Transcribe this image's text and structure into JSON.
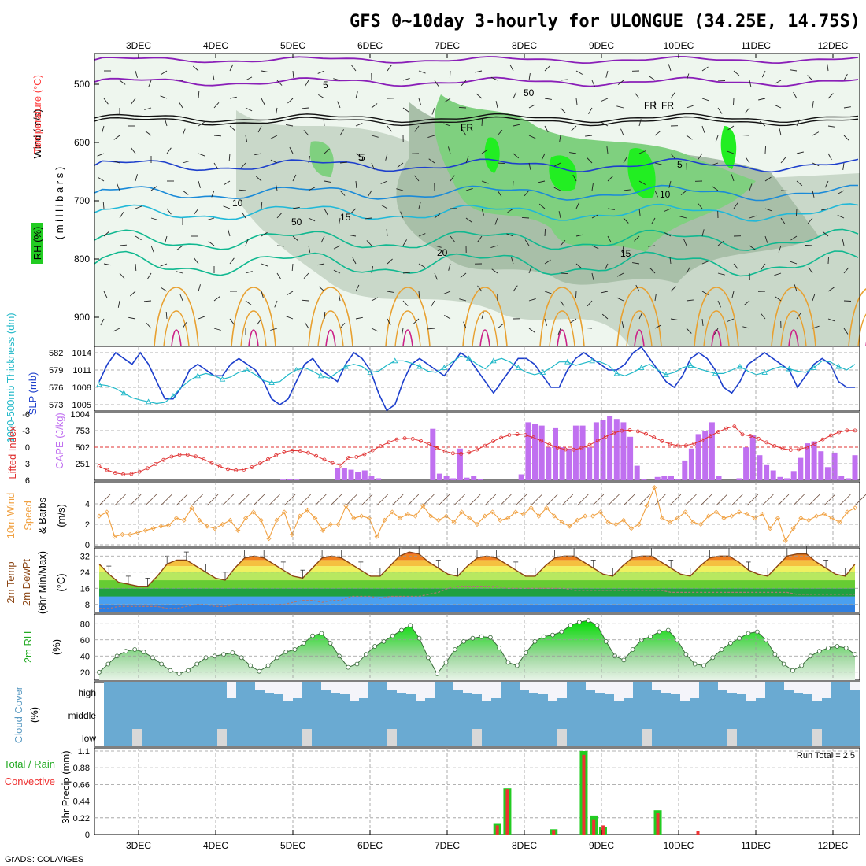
{
  "title": "GFS 0~10day 3-hourly for ULONGUE (34.25E, 14.75S)",
  "footer": "GrADS: COLA/IGES",
  "days": [
    "3DEC",
    "4DEC",
    "5DEC",
    "6DEC",
    "7DEC",
    "8DEC",
    "9DEC",
    "10DEC",
    "11DEC",
    "12DEC"
  ],
  "colors": {
    "slp": "#1d3fcc",
    "thickness": "#20b8c8",
    "lifted": "#e03030",
    "cape": "#c070f0",
    "wind10": "#f0a040",
    "rh_green": "#22cc22",
    "cloud": "#6aaad2",
    "precip_total": "#22cc22",
    "precip_conv": "#ee3333",
    "temp_line": "#8b4513",
    "dew_line": "#aa7777"
  },
  "upper_panel": {
    "ylabel_wind": "Wind (m/s)",
    "ylabel_temp": "Temperature (°C)",
    "ylabel_rh": "RH (%)",
    "ylabel_mb": "( m i l l i b a r s )",
    "ticks": [
      "500",
      "600",
      "700",
      "800",
      "900"
    ],
    "labels": [
      "5",
      "50",
      "FR",
      "FR",
      "FR",
      "5",
      "5",
      "5",
      "10",
      "10",
      "15",
      "15",
      "20",
      "50"
    ]
  },
  "slp_panel": {
    "ylabel_left": "1000-500mb Thickness (dm)",
    "ylabel_right": "SLP (mb)",
    "left_ticks": [
      "582",
      "579",
      "576",
      "573"
    ],
    "right_ticks": [
      "1014",
      "1011",
      "1008",
      "1005"
    ]
  },
  "cape_panel": {
    "ylabel_left": "Lifted Index",
    "ylabel_right": "CAPE (J/kg)",
    "left_ticks": [
      "-6",
      "-3",
      "0",
      "3",
      "6"
    ],
    "right_ticks": [
      "1004",
      "753",
      "502",
      "251"
    ]
  },
  "wind_panel": {
    "ylabel_a": "10m Wind",
    "ylabel_b": "Speed",
    "ylabel_c": "& Barbs",
    "unit": "(m/s)",
    "ticks": [
      "4",
      "2",
      "0"
    ]
  },
  "temp_panel": {
    "ylabel_a": "2m Temp",
    "ylabel_b": "2m DewPt",
    "ylabel_c": "(6hr Min/Max)",
    "unit": "(°C)",
    "ticks": [
      "32",
      "24",
      "16",
      "8"
    ]
  },
  "rh_panel": {
    "ylabel": "2m RH",
    "unit": "(%)",
    "ticks": [
      "80",
      "60",
      "40",
      "20"
    ]
  },
  "cloud_panel": {
    "ylabel": "Cloud Cover",
    "unit": "(%)",
    "levels": [
      "high",
      "middle",
      "low"
    ]
  },
  "precip_panel": {
    "ylabel_a": "3hr Precip (mm)",
    "ylabel_b": "Total / Rain",
    "ylabel_c": "Convective",
    "ticks": [
      "1.1",
      "0.88",
      "0.66",
      "0.44",
      "0.22",
      "0"
    ],
    "run_total": "Run Total = 2.5"
  },
  "chart_data": [
    {
      "type": "line",
      "title": "SLP (mb) / 1000-500mb Thickness (dm)",
      "x_unit": "3-hourly steps from 2 DEC 12Z",
      "series": [
        {
          "name": "SLP (mb)",
          "values": [
            1009,
            1012,
            1014,
            1013,
            1012,
            1014,
            1012,
            1009,
            1006,
            1006,
            1008,
            1011,
            1012,
            1011,
            1010,
            1010,
            1012,
            1013,
            1012,
            1011,
            1009,
            1006,
            1005,
            1006,
            1009,
            1012,
            1013,
            1011,
            1010,
            1009,
            1012,
            1014,
            1013,
            1011,
            1007,
            1004,
            1005,
            1009,
            1012,
            1013,
            1012,
            1011,
            1010,
            1012,
            1014,
            1013,
            1011,
            1009,
            1007,
            1009,
            1011,
            1013,
            1013,
            1012,
            1010,
            1008,
            1008,
            1011,
            1013,
            1014,
            1013,
            1012,
            1011,
            1011,
            1012,
            1014,
            1015,
            1013,
            1011,
            1009,
            1008,
            1010,
            1013,
            1014,
            1013,
            1011,
            1008,
            1007,
            1009,
            1012,
            1013,
            1014,
            1013,
            1012,
            1011,
            1008,
            1010,
            1012,
            1013,
            1012,
            1009,
            1008,
            1008
          ]
        },
        {
          "name": "Thickness (dm)",
          "values": [
            576.5,
            576.3,
            575.8,
            575.0,
            574.2,
            573.8,
            573.5,
            573.2,
            573.4,
            574.5,
            576.0,
            577.2,
            578.0,
            578.4,
            578.0,
            577.4,
            577.8,
            578.6,
            579.0,
            578.2,
            577.2,
            576.8,
            577.0,
            578.2,
            579.0,
            579.4,
            578.8,
            578.0,
            577.6,
            578.6,
            579.6,
            580.0,
            579.6,
            578.6,
            578.8,
            579.8,
            580.6,
            580.6,
            580.2,
            579.6,
            578.8,
            578.6,
            579.4,
            580.4,
            581.4,
            581.0,
            580.0,
            579.2,
            580.6,
            581.0,
            580.4,
            579.4,
            578.6,
            578.2,
            578.6,
            579.4,
            580.4,
            580.4,
            579.8,
            580.2,
            580.6,
            580.4,
            579.8,
            578.4,
            578.0,
            578.6,
            579.4,
            580.0,
            579.0,
            578.2,
            578.6,
            579.4,
            579.8,
            579.2,
            578.8,
            578.4,
            578.4,
            579.0,
            579.6,
            578.8,
            578.2,
            578.6,
            579.2,
            579.6,
            579.2,
            578.8,
            578.6,
            579.4,
            580.6,
            580.4,
            579.6,
            579.0,
            580.0
          ]
        }
      ]
    },
    {
      "type": "bar",
      "title": "CAPE (J/kg) with Lifted Index line",
      "cape_values": [
        0,
        0,
        0,
        0,
        0,
        0,
        0,
        0,
        0,
        0,
        0,
        0,
        0,
        0,
        0,
        0,
        0,
        0,
        0,
        0,
        0,
        0,
        0,
        0,
        0,
        0,
        0,
        10,
        20,
        10,
        0,
        0,
        0,
        0,
        0,
        180,
        180,
        160,
        120,
        150,
        70,
        30,
        0,
        0,
        0,
        0,
        0,
        0,
        0,
        780,
        100,
        60,
        30,
        480,
        40,
        60,
        20,
        0,
        0,
        0,
        0,
        0,
        90,
        880,
        860,
        830,
        500,
        790,
        500,
        480,
        830,
        830,
        500,
        880,
        920,
        980,
        930,
        880,
        660,
        220,
        20,
        0,
        50,
        60,
        60,
        20,
        300,
        480,
        700,
        750,
        880,
        60,
        0,
        0,
        30,
        500,
        680,
        380,
        230,
        150,
        50,
        30,
        140,
        340,
        560,
        590,
        440,
        200,
        420,
        60,
        30,
        380
      ]
    },
    {
      "type": "line",
      "title": "10m Wind Speed (m/s)",
      "values": [
        2.8,
        3.2,
        0.8,
        1.0,
        1.0,
        1.2,
        1.4,
        1.6,
        1.8,
        1.9,
        2.6,
        2.4,
        3.6,
        2.4,
        1.8,
        1.6,
        2.0,
        2.4,
        1.4,
        2.6,
        3.2,
        2.4,
        0.6,
        2.4,
        3.2,
        1.0,
        2.8,
        3.4,
        2.6,
        1.4,
        2.0,
        2.0,
        3.8,
        2.6,
        2.8,
        2.6,
        0.8,
        2.4,
        3.2,
        2.6,
        3.0,
        2.8,
        3.8,
        2.8,
        2.4,
        2.8,
        2.2,
        3.2,
        2.6,
        2.0,
        2.8,
        3.2,
        2.4,
        2.6,
        3.2,
        3.0,
        3.6,
        2.8,
        3.6,
        2.8,
        2.2,
        1.8,
        2.4,
        2.8,
        2.8,
        3.2,
        2.2,
        2.0,
        2.4,
        1.6,
        2.0,
        3.8,
        5.6,
        2.6,
        2.2,
        2.6,
        3.2,
        2.2,
        2.0,
        2.8,
        3.2,
        2.6,
        2.8,
        3.2,
        3.0,
        2.6,
        3.0,
        1.6,
        2.6,
        0.4,
        1.6,
        2.6,
        2.4,
        2.8,
        3.0,
        2.6,
        2.2,
        3.2,
        3.6
      ]
    },
    {
      "type": "area",
      "title": "2m Temp / 2m DewPt (°C)",
      "temp": [
        28,
        23,
        19,
        18,
        17,
        17,
        22,
        28,
        30,
        30,
        27,
        24,
        21,
        20,
        26,
        31,
        32,
        31,
        28,
        25,
        22,
        21,
        26,
        31,
        32,
        31,
        28,
        25,
        22,
        22,
        27,
        32,
        34,
        33,
        29,
        26,
        23,
        22,
        27,
        31,
        32,
        31,
        28,
        25,
        22,
        22,
        27,
        31,
        32,
        32,
        29,
        26,
        23,
        22,
        27,
        31,
        32,
        32,
        29,
        26,
        23,
        22,
        27,
        31,
        32,
        32,
        29,
        25,
        23,
        22,
        27,
        32,
        33,
        33,
        29,
        26,
        23,
        22,
        28
      ],
      "dewpt": [
        6,
        6,
        7,
        7,
        7,
        7,
        7,
        6,
        6,
        7,
        8,
        8,
        7,
        7,
        8,
        8,
        8,
        8,
        8,
        8,
        9,
        10,
        10,
        9,
        10,
        10,
        12,
        12,
        12,
        11,
        12,
        12,
        12,
        12,
        13,
        14,
        16,
        17,
        17,
        17,
        17,
        17,
        16,
        16,
        16,
        16,
        16,
        16,
        16,
        15,
        15,
        15,
        15,
        15,
        15,
        15,
        15,
        15,
        15,
        14,
        14,
        14,
        14,
        14,
        14,
        14,
        14,
        14,
        14,
        14,
        14,
        14,
        13,
        13,
        13,
        13,
        13,
        13,
        13
      ]
    },
    {
      "type": "area",
      "title": "2m RH (%)",
      "values": [
        20,
        30,
        40,
        46,
        48,
        45,
        38,
        30,
        22,
        18,
        22,
        30,
        38,
        40,
        42,
        44,
        38,
        28,
        21,
        28,
        38,
        45,
        48,
        56,
        65,
        68,
        56,
        40,
        26,
        30,
        42,
        52,
        58,
        65,
        72,
        78,
        62,
        38,
        18,
        32,
        48,
        58,
        62,
        64,
        63,
        50,
        32,
        28,
        44,
        58,
        64,
        66,
        70,
        78,
        82,
        84,
        78,
        58,
        40,
        35,
        48,
        60,
        64,
        70,
        72,
        60,
        42,
        30,
        28,
        38,
        48,
        56,
        62,
        68,
        70,
        60,
        42,
        30,
        22,
        28,
        40,
        46,
        50,
        52,
        50,
        42
      ]
    },
    {
      "type": "bar",
      "title": "3hr Precip (mm)",
      "events": [
        {
          "x": 7.65,
          "total": 0.14,
          "conv": 0.12
        },
        {
          "x": 7.78,
          "total": 0.61,
          "conv": 0.6
        },
        {
          "x": 8.38,
          "total": 0.07,
          "conv": 0.06
        },
        {
          "x": 8.77,
          "total": 1.1,
          "conv": 1.05
        },
        {
          "x": 8.9,
          "total": 0.25,
          "conv": 0.2
        },
        {
          "x": 9.02,
          "total": 0.1,
          "conv": 0.12
        },
        {
          "x": 9.73,
          "total": 0.32,
          "conv": 0.28
        },
        {
          "x": 10.25,
          "total": 0.0,
          "conv": 0.05
        }
      ]
    }
  ]
}
